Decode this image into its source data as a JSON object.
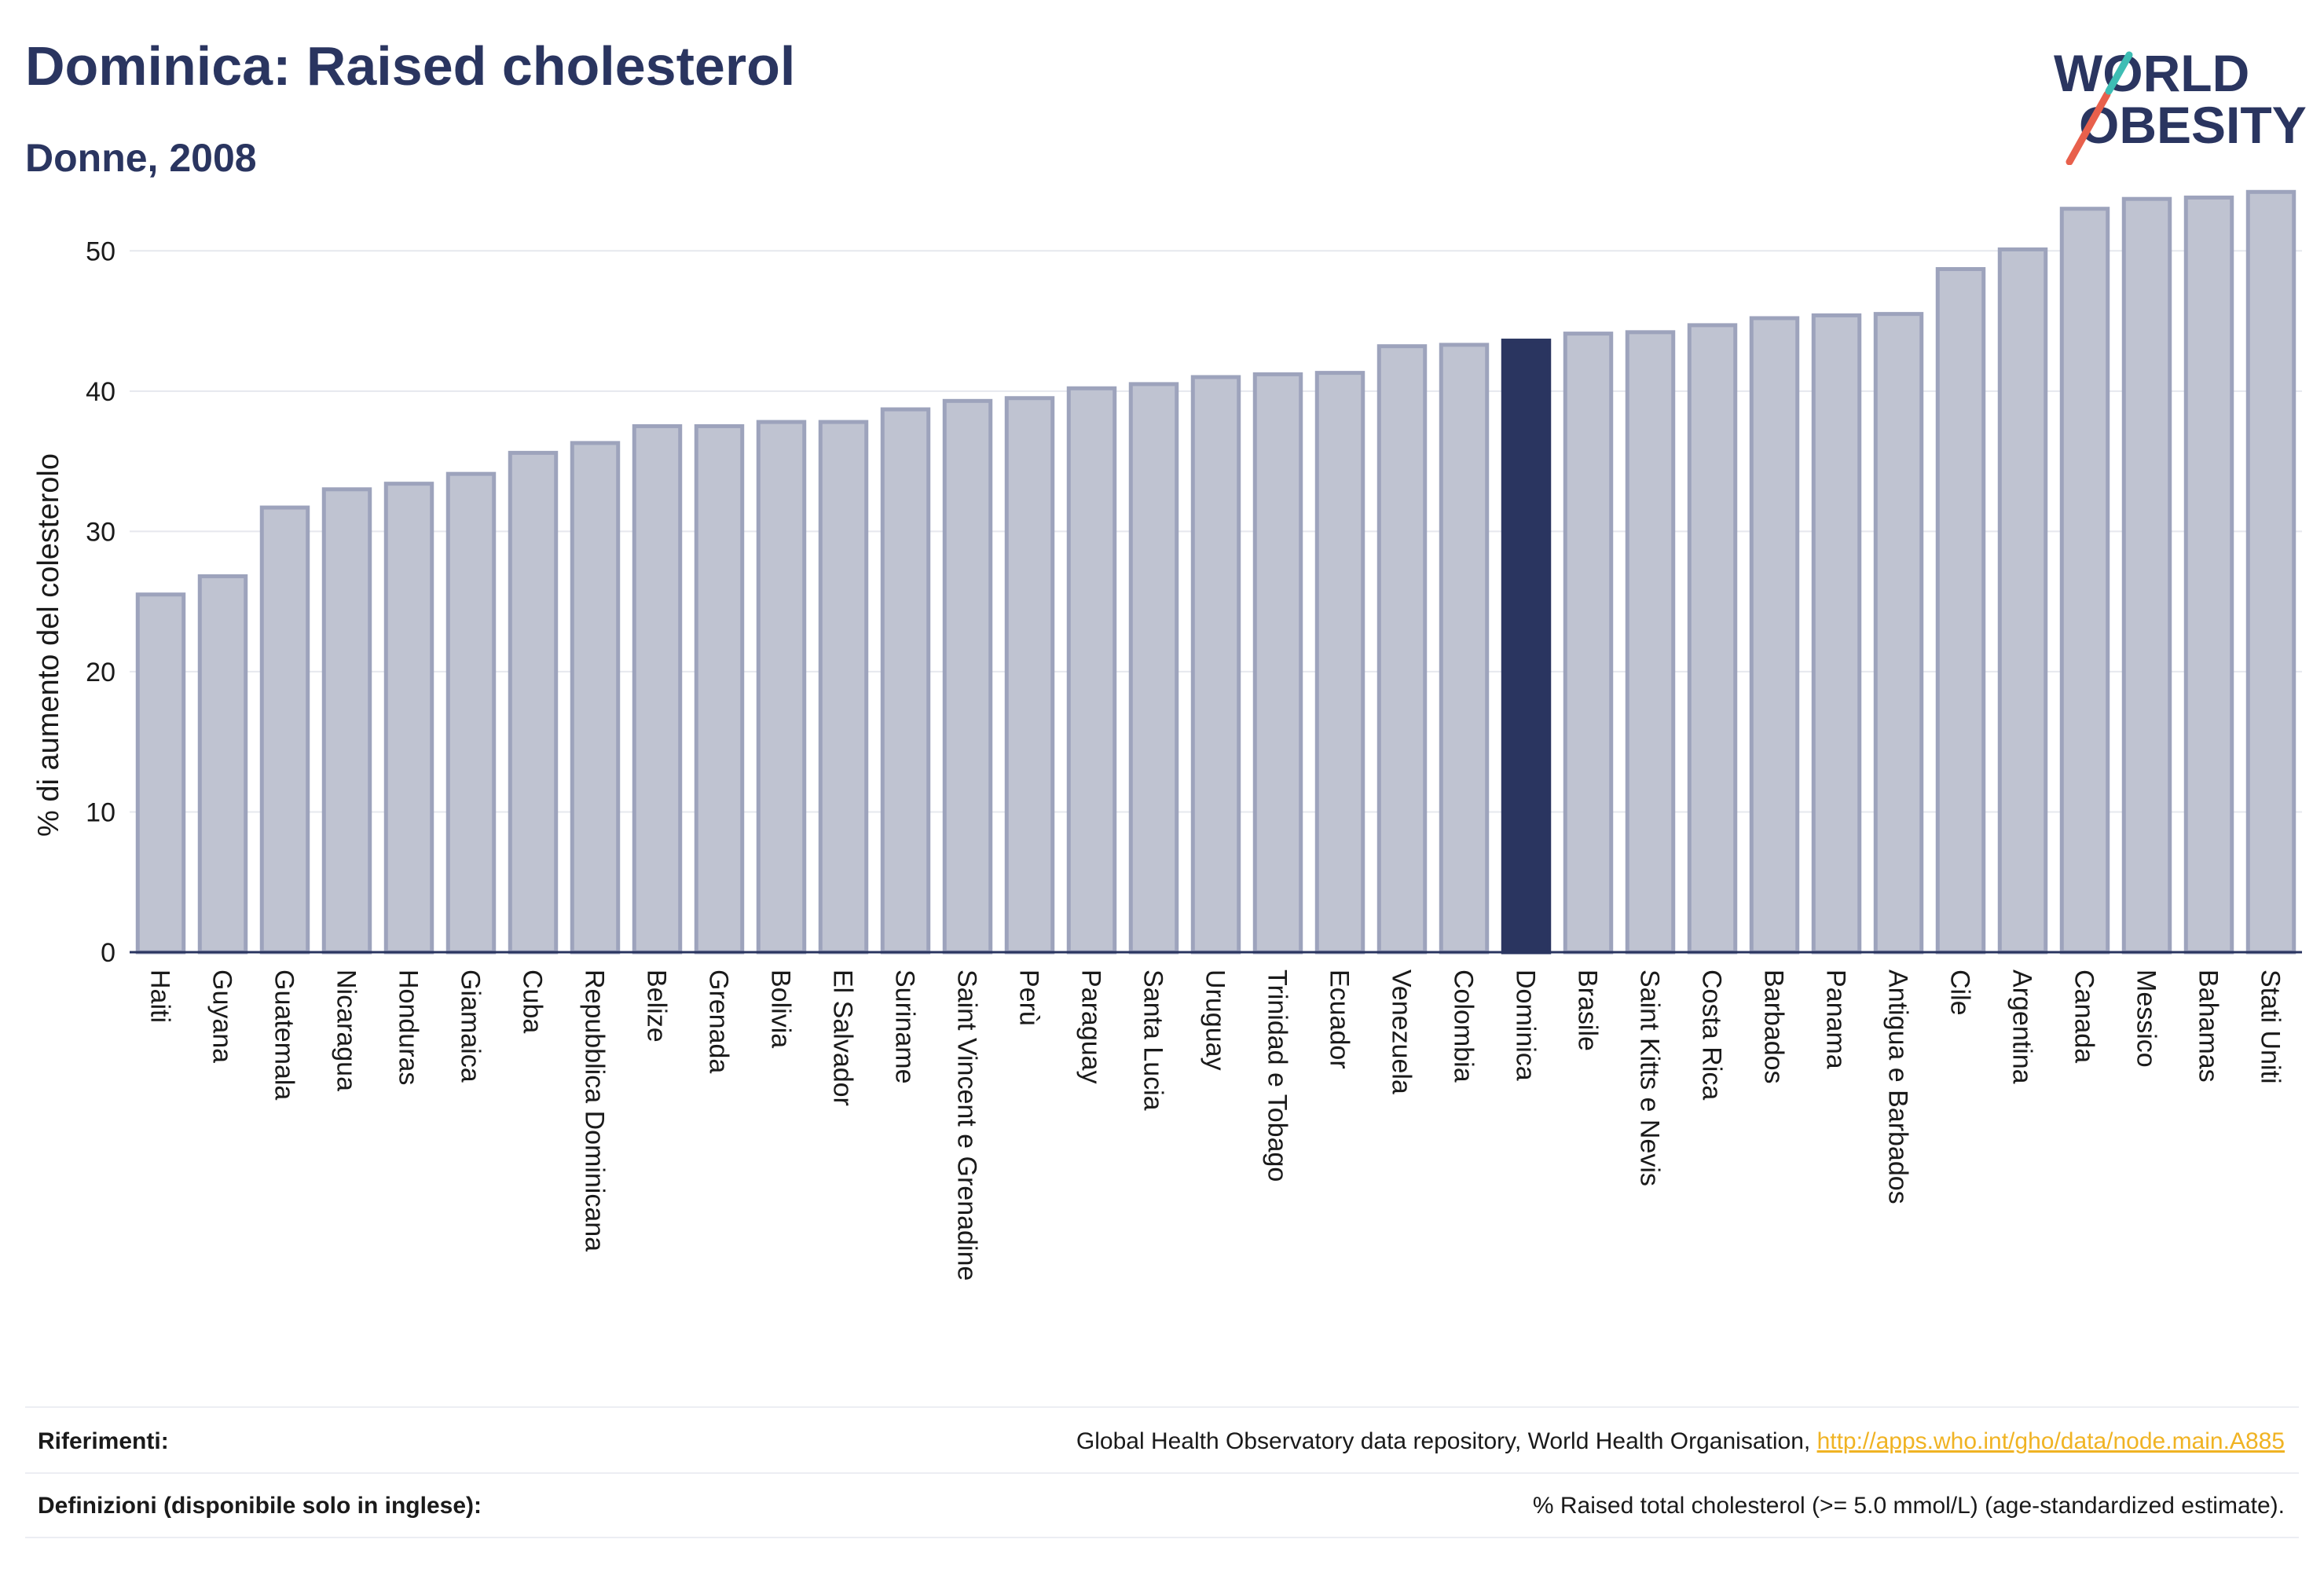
{
  "header": {
    "title": "Dominica: Raised cholesterol",
    "subtitle": "Donne, 2008"
  },
  "logo": {
    "line1": "WORLD",
    "line2": "OBESITY",
    "colors": {
      "text": "#2a3560",
      "slash_red": "#e8604c",
      "slash_teal": "#3ebdb4"
    }
  },
  "chart_data": {
    "type": "bar",
    "title": "",
    "xlabel": "",
    "ylabel": "% di aumento del colesterolo",
    "ylim": [
      0,
      55
    ],
    "yticks": [
      0,
      10,
      20,
      30,
      40,
      50
    ],
    "grid": true,
    "highlight": "Dominica",
    "colors": {
      "bar": "#bfc3d1",
      "bar_edge": "#9da3bc",
      "highlight": "#2a3560",
      "grid": "#e6e8ee",
      "axis": "#2a3560"
    },
    "categories": [
      "Haiti",
      "Guyana",
      "Guatemala",
      "Nicaragua",
      "Honduras",
      "Giamaica",
      "Cuba",
      "Repubblica Dominicana",
      "Belize",
      "Grenada",
      "Bolivia",
      "El Salvador",
      "Suriname",
      "Saint Vincent e Grenadine",
      "Perù",
      "Paraguay",
      "Santa Lucia",
      "Uruguay",
      "Trinidad e Tobago",
      "Ecuador",
      "Venezuela",
      "Colombia",
      "Dominica",
      "Brasile",
      "Saint Kitts e Nevis",
      "Costa Rica",
      "Barbados",
      "Panama",
      "Antigua e Barbados",
      "Cile",
      "Argentina",
      "Canada",
      "Messico",
      "Bahamas",
      "Stati Uniti"
    ],
    "values": [
      25.5,
      26.8,
      31.7,
      33.0,
      33.4,
      34.1,
      35.6,
      36.3,
      37.5,
      37.5,
      37.8,
      37.8,
      38.7,
      39.3,
      39.5,
      40.2,
      40.5,
      41.0,
      41.2,
      41.3,
      43.2,
      43.3,
      43.6,
      44.1,
      44.2,
      44.7,
      45.2,
      45.4,
      45.5,
      48.7,
      50.1,
      53.0,
      53.7,
      53.8,
      54.2
    ]
  },
  "footer": {
    "references_label": "Riferimenti:",
    "references_text": "Global Health Observatory data repository, World Health Organisation, ",
    "references_link": "http://apps.who.int/gho/data/node.main.A885",
    "definitions_label": "Definizioni (disponibile solo in inglese):",
    "definitions_text": "% Raised total cholesterol (>= 5.0 mmol/L) (age-standardized estimate)."
  }
}
